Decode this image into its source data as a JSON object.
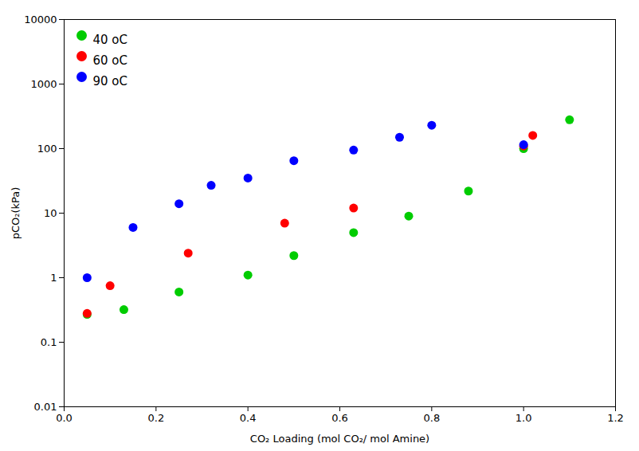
{
  "chart_data": {
    "type": "scatter",
    "xlabel": "CO₂ Loading (mol CO₂/ mol Amine)",
    "ylabel": "pCO₂(kPa)",
    "series": [
      {
        "name": "40 oC",
        "color": "#00cc00",
        "x": [
          0.05,
          0.13,
          0.25,
          0.4,
          0.5,
          0.63,
          0.75,
          0.88,
          1.0,
          1.1
        ],
        "values": [
          0.27,
          0.32,
          0.6,
          1.1,
          2.2,
          5.0,
          9.0,
          22,
          100,
          280
        ]
      },
      {
        "name": "60 oC",
        "color": "#ff0000",
        "x": [
          0.05,
          0.1,
          0.27,
          0.48,
          0.63,
          1.0,
          1.02
        ],
        "values": [
          0.28,
          0.75,
          2.4,
          7.0,
          12,
          110,
          160
        ]
      },
      {
        "name": "90 oC",
        "color": "#0000ff",
        "x": [
          0.05,
          0.15,
          0.25,
          0.32,
          0.4,
          0.5,
          0.63,
          0.73,
          0.8,
          1.0
        ],
        "values": [
          1.0,
          6.0,
          14,
          27,
          35,
          65,
          95,
          150,
          230,
          115
        ]
      }
    ],
    "xlim": [
      0.0,
      1.2
    ],
    "ylim": [
      0.01,
      10000
    ],
    "xticks": [
      {
        "value": 0.0,
        "label": "0.0"
      },
      0.2,
      0.4,
      0.6,
      0.8,
      {
        "value": 1.0,
        "label": "1.0"
      },
      1.2
    ],
    "yticks": [
      0.01,
      0.1,
      1,
      10,
      100,
      1000,
      10000
    ],
    "log": "y",
    "grid": false,
    "legend": "upper left",
    "marker": "circle"
  }
}
